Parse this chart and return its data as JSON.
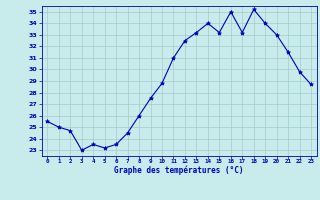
{
  "x": [
    0,
    1,
    2,
    3,
    4,
    5,
    6,
    7,
    8,
    9,
    10,
    11,
    12,
    13,
    14,
    15,
    16,
    17,
    18,
    19,
    20,
    21,
    22,
    23
  ],
  "y": [
    25.5,
    25.0,
    24.7,
    23.0,
    23.5,
    23.2,
    23.5,
    24.5,
    26.0,
    27.5,
    28.8,
    31.0,
    32.5,
    33.2,
    34.0,
    33.2,
    35.0,
    33.2,
    35.2,
    34.0,
    33.0,
    31.5,
    29.8,
    28.7
  ],
  "line_color": "#0000bb",
  "marker": "*",
  "marker_size": 3,
  "bg_color": "#c8ecec",
  "grid_color": "#a0cccc",
  "xlabel": "Graphe des températures (°C)",
  "xlabel_color": "#0000bb",
  "tick_color": "#0000bb",
  "ylim_min": 22.5,
  "ylim_max": 35.5,
  "yticks": [
    23,
    24,
    25,
    26,
    27,
    28,
    29,
    30,
    31,
    32,
    33,
    34,
    35
  ],
  "xticks": [
    0,
    1,
    2,
    3,
    4,
    5,
    6,
    7,
    8,
    9,
    10,
    11,
    12,
    13,
    14,
    15,
    16,
    17,
    18,
    19,
    20,
    21,
    22,
    23
  ],
  "xlim_min": -0.5,
  "xlim_max": 23.5
}
